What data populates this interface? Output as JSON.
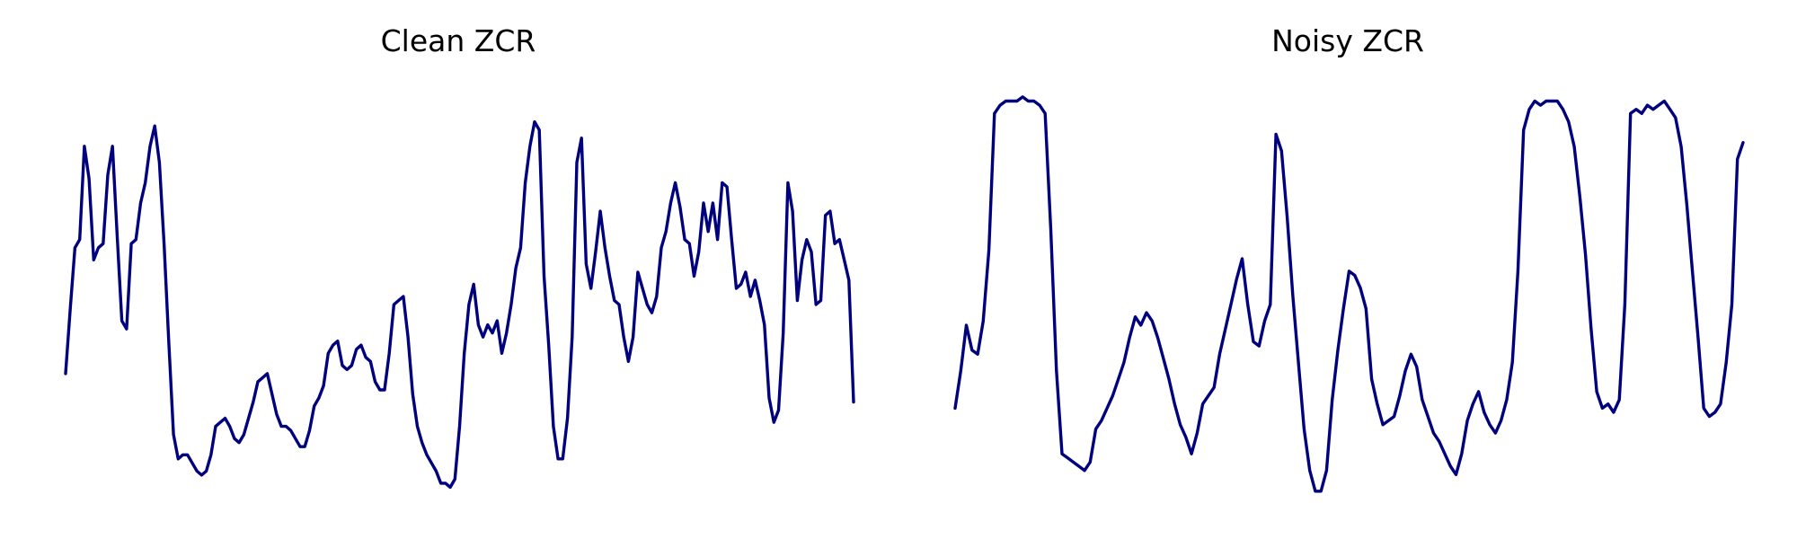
{
  "figure": {
    "background": "#ffffff",
    "line_color": "#00007f"
  },
  "chart_data": [
    {
      "type": "line",
      "title": "Clean ZCR",
      "xlabel": "",
      "ylabel": "",
      "axes_visible": false,
      "grid": false,
      "ylim": [
        0,
        1
      ],
      "series": [
        {
          "values": [
            0.31,
            0.47,
            0.62,
            0.64,
            0.87,
            0.79,
            0.59,
            0.62,
            0.63,
            0.8,
            0.87,
            0.65,
            0.44,
            0.42,
            0.63,
            0.64,
            0.73,
            0.78,
            0.87,
            0.92,
            0.83,
            0.63,
            0.39,
            0.16,
            0.1,
            0.11,
            0.11,
            0.09,
            0.07,
            0.06,
            0.07,
            0.11,
            0.18,
            0.19,
            0.2,
            0.18,
            0.15,
            0.14,
            0.16,
            0.2,
            0.24,
            0.29,
            0.3,
            0.31,
            0.26,
            0.21,
            0.18,
            0.18,
            0.17,
            0.15,
            0.13,
            0.13,
            0.17,
            0.23,
            0.25,
            0.28,
            0.36,
            0.38,
            0.39,
            0.33,
            0.32,
            0.33,
            0.37,
            0.38,
            0.35,
            0.34,
            0.29,
            0.27,
            0.27,
            0.36,
            0.48,
            0.49,
            0.5,
            0.4,
            0.26,
            0.18,
            0.14,
            0.11,
            0.09,
            0.07,
            0.04,
            0.04,
            0.03,
            0.05,
            0.18,
            0.36,
            0.48,
            0.53,
            0.43,
            0.4,
            0.43,
            0.41,
            0.44,
            0.36,
            0.41,
            0.48,
            0.57,
            0.62,
            0.78,
            0.87,
            0.93,
            0.91,
            0.55,
            0.38,
            0.18,
            0.1,
            0.1,
            0.2,
            0.4,
            0.83,
            0.89,
            0.58,
            0.52,
            0.61,
            0.71,
            0.62,
            0.55,
            0.49,
            0.48,
            0.4,
            0.34,
            0.4,
            0.56,
            0.52,
            0.48,
            0.46,
            0.5,
            0.62,
            0.66,
            0.73,
            0.78,
            0.72,
            0.64,
            0.63,
            0.55,
            0.61,
            0.73,
            0.66,
            0.73,
            0.64,
            0.78,
            0.77,
            0.64,
            0.52,
            0.53,
            0.56,
            0.5,
            0.54,
            0.49,
            0.43,
            0.25,
            0.19,
            0.22,
            0.41,
            0.78,
            0.71,
            0.49,
            0.59,
            0.64,
            0.61,
            0.48,
            0.49,
            0.7,
            0.71,
            0.63,
            0.64,
            0.59,
            0.54,
            0.24
          ]
        }
      ]
    },
    {
      "type": "line",
      "title": "Noisy ZCR",
      "xlabel": "",
      "ylabel": "",
      "axes_visible": false,
      "grid": false,
      "ylim": [
        0,
        1
      ],
      "series": [
        {
          "values": [
            0.22,
            0.31,
            0.42,
            0.36,
            0.35,
            0.43,
            0.6,
            0.93,
            0.95,
            0.96,
            0.96,
            0.96,
            0.97,
            0.96,
            0.96,
            0.95,
            0.93,
            0.65,
            0.31,
            0.11,
            0.1,
            0.09,
            0.08,
            0.07,
            0.09,
            0.17,
            0.19,
            0.22,
            0.25,
            0.29,
            0.33,
            0.39,
            0.44,
            0.42,
            0.45,
            0.43,
            0.39,
            0.34,
            0.29,
            0.23,
            0.18,
            0.15,
            0.11,
            0.16,
            0.23,
            0.25,
            0.27,
            0.35,
            0.41,
            0.47,
            0.53,
            0.58,
            0.47,
            0.38,
            0.37,
            0.43,
            0.47,
            0.88,
            0.84,
            0.68,
            0.49,
            0.33,
            0.17,
            0.07,
            0.02,
            0.02,
            0.07,
            0.24,
            0.36,
            0.46,
            0.55,
            0.54,
            0.51,
            0.46,
            0.29,
            0.23,
            0.18,
            0.19,
            0.2,
            0.25,
            0.31,
            0.35,
            0.32,
            0.24,
            0.2,
            0.16,
            0.14,
            0.11,
            0.08,
            0.06,
            0.11,
            0.19,
            0.23,
            0.26,
            0.21,
            0.18,
            0.16,
            0.19,
            0.24,
            0.33,
            0.55,
            0.89,
            0.94,
            0.96,
            0.95,
            0.96,
            0.96,
            0.96,
            0.94,
            0.91,
            0.85,
            0.73,
            0.59,
            0.41,
            0.26,
            0.22,
            0.23,
            0.21,
            0.24,
            0.47,
            0.93,
            0.94,
            0.93,
            0.95,
            0.94,
            0.95,
            0.96,
            0.94,
            0.92,
            0.85,
            0.71,
            0.55,
            0.39,
            0.22,
            0.2,
            0.21,
            0.23,
            0.33,
            0.47,
            0.82,
            0.86
          ]
        }
      ]
    }
  ]
}
